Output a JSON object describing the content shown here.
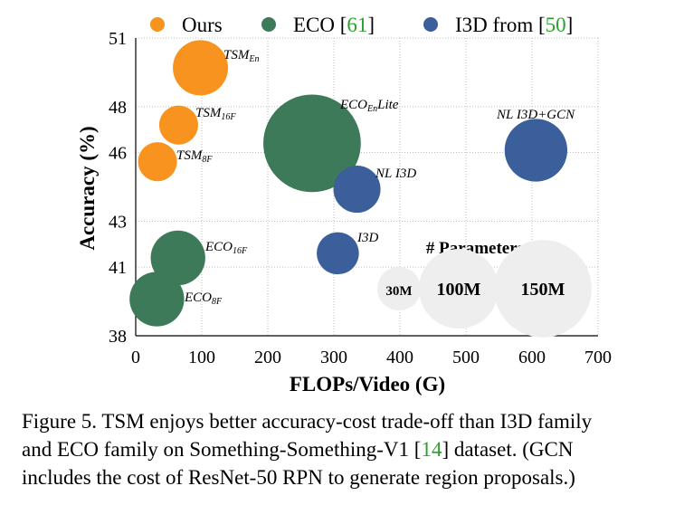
{
  "chart_data": {
    "type": "scatter",
    "variant": "bubble",
    "xlabel": "FLOPs/Video (G)",
    "ylabel": "Accuracy (%)",
    "xlim": [
      0,
      700
    ],
    "ylim": [
      38,
      51
    ],
    "xticks": [
      "0",
      "100",
      "200",
      "300",
      "400",
      "500",
      "600",
      "700"
    ],
    "yticks": [
      "38",
      "41",
      "43",
      "46",
      "48",
      "51"
    ],
    "grid": true,
    "legend": [
      {
        "label": "Ours",
        "color": "#f7931e"
      },
      {
        "label": "ECO [",
        "ref": "61",
        "close": "]",
        "color": "#3d7a5a"
      },
      {
        "label": "I3D from [",
        "ref": "50",
        "close": "]",
        "color": "#3b5f9a"
      }
    ],
    "series": [
      {
        "name": "Ours",
        "color": "#f7931e",
        "points": [
          {
            "x": 33,
            "y": 45.6,
            "params_m": 24,
            "label": "TSM",
            "sub": "8F"
          },
          {
            "x": 65,
            "y": 47.2,
            "params_m": 24,
            "label": "TSM",
            "sub": "16F"
          },
          {
            "x": 98,
            "y": 49.7,
            "params_m": 48,
            "label": "TSM",
            "sub": "En"
          }
        ]
      },
      {
        "name": "ECO",
        "color": "#3d7a5a",
        "points": [
          {
            "x": 32,
            "y": 39.6,
            "params_m": 47,
            "label": "ECO",
            "sub": "8F"
          },
          {
            "x": 64,
            "y": 41.4,
            "params_m": 47,
            "label": "ECO",
            "sub": "16F"
          },
          {
            "x": 267,
            "y": 46.4,
            "params_m": 150,
            "label": "ECO",
            "sub": "En",
            "suffix": "Lite"
          }
        ]
      },
      {
        "name": "I3D from [50]",
        "color": "#3b5f9a",
        "points": [
          {
            "x": 306,
            "y": 41.6,
            "params_m": 28,
            "label": "I3D"
          },
          {
            "x": 335,
            "y": 44.4,
            "params_m": 35,
            "label": "NL I3D"
          },
          {
            "x": 606,
            "y": 46.1,
            "params_m": 62,
            "label": "NL I3D+GCN"
          }
        ]
      }
    ],
    "size_legend": {
      "title": "# Parameters",
      "color": "#eeeeee",
      "items": [
        {
          "label": "30M",
          "params_m": 30
        },
        {
          "label": "100M",
          "params_m": 100
        },
        {
          "label": "150M",
          "params_m": 150
        }
      ]
    }
  },
  "caption": {
    "line1": "Figure 5. TSM enjoys better accuracy-cost trade-off than I3D family",
    "line2_a": "and ECO family on Something-Something-V1 [",
    "line2_ref": "14",
    "line2_b": "] dataset. (GCN",
    "line3": "includes the cost of ResNet-50 RPN to generate region proposals.)"
  }
}
